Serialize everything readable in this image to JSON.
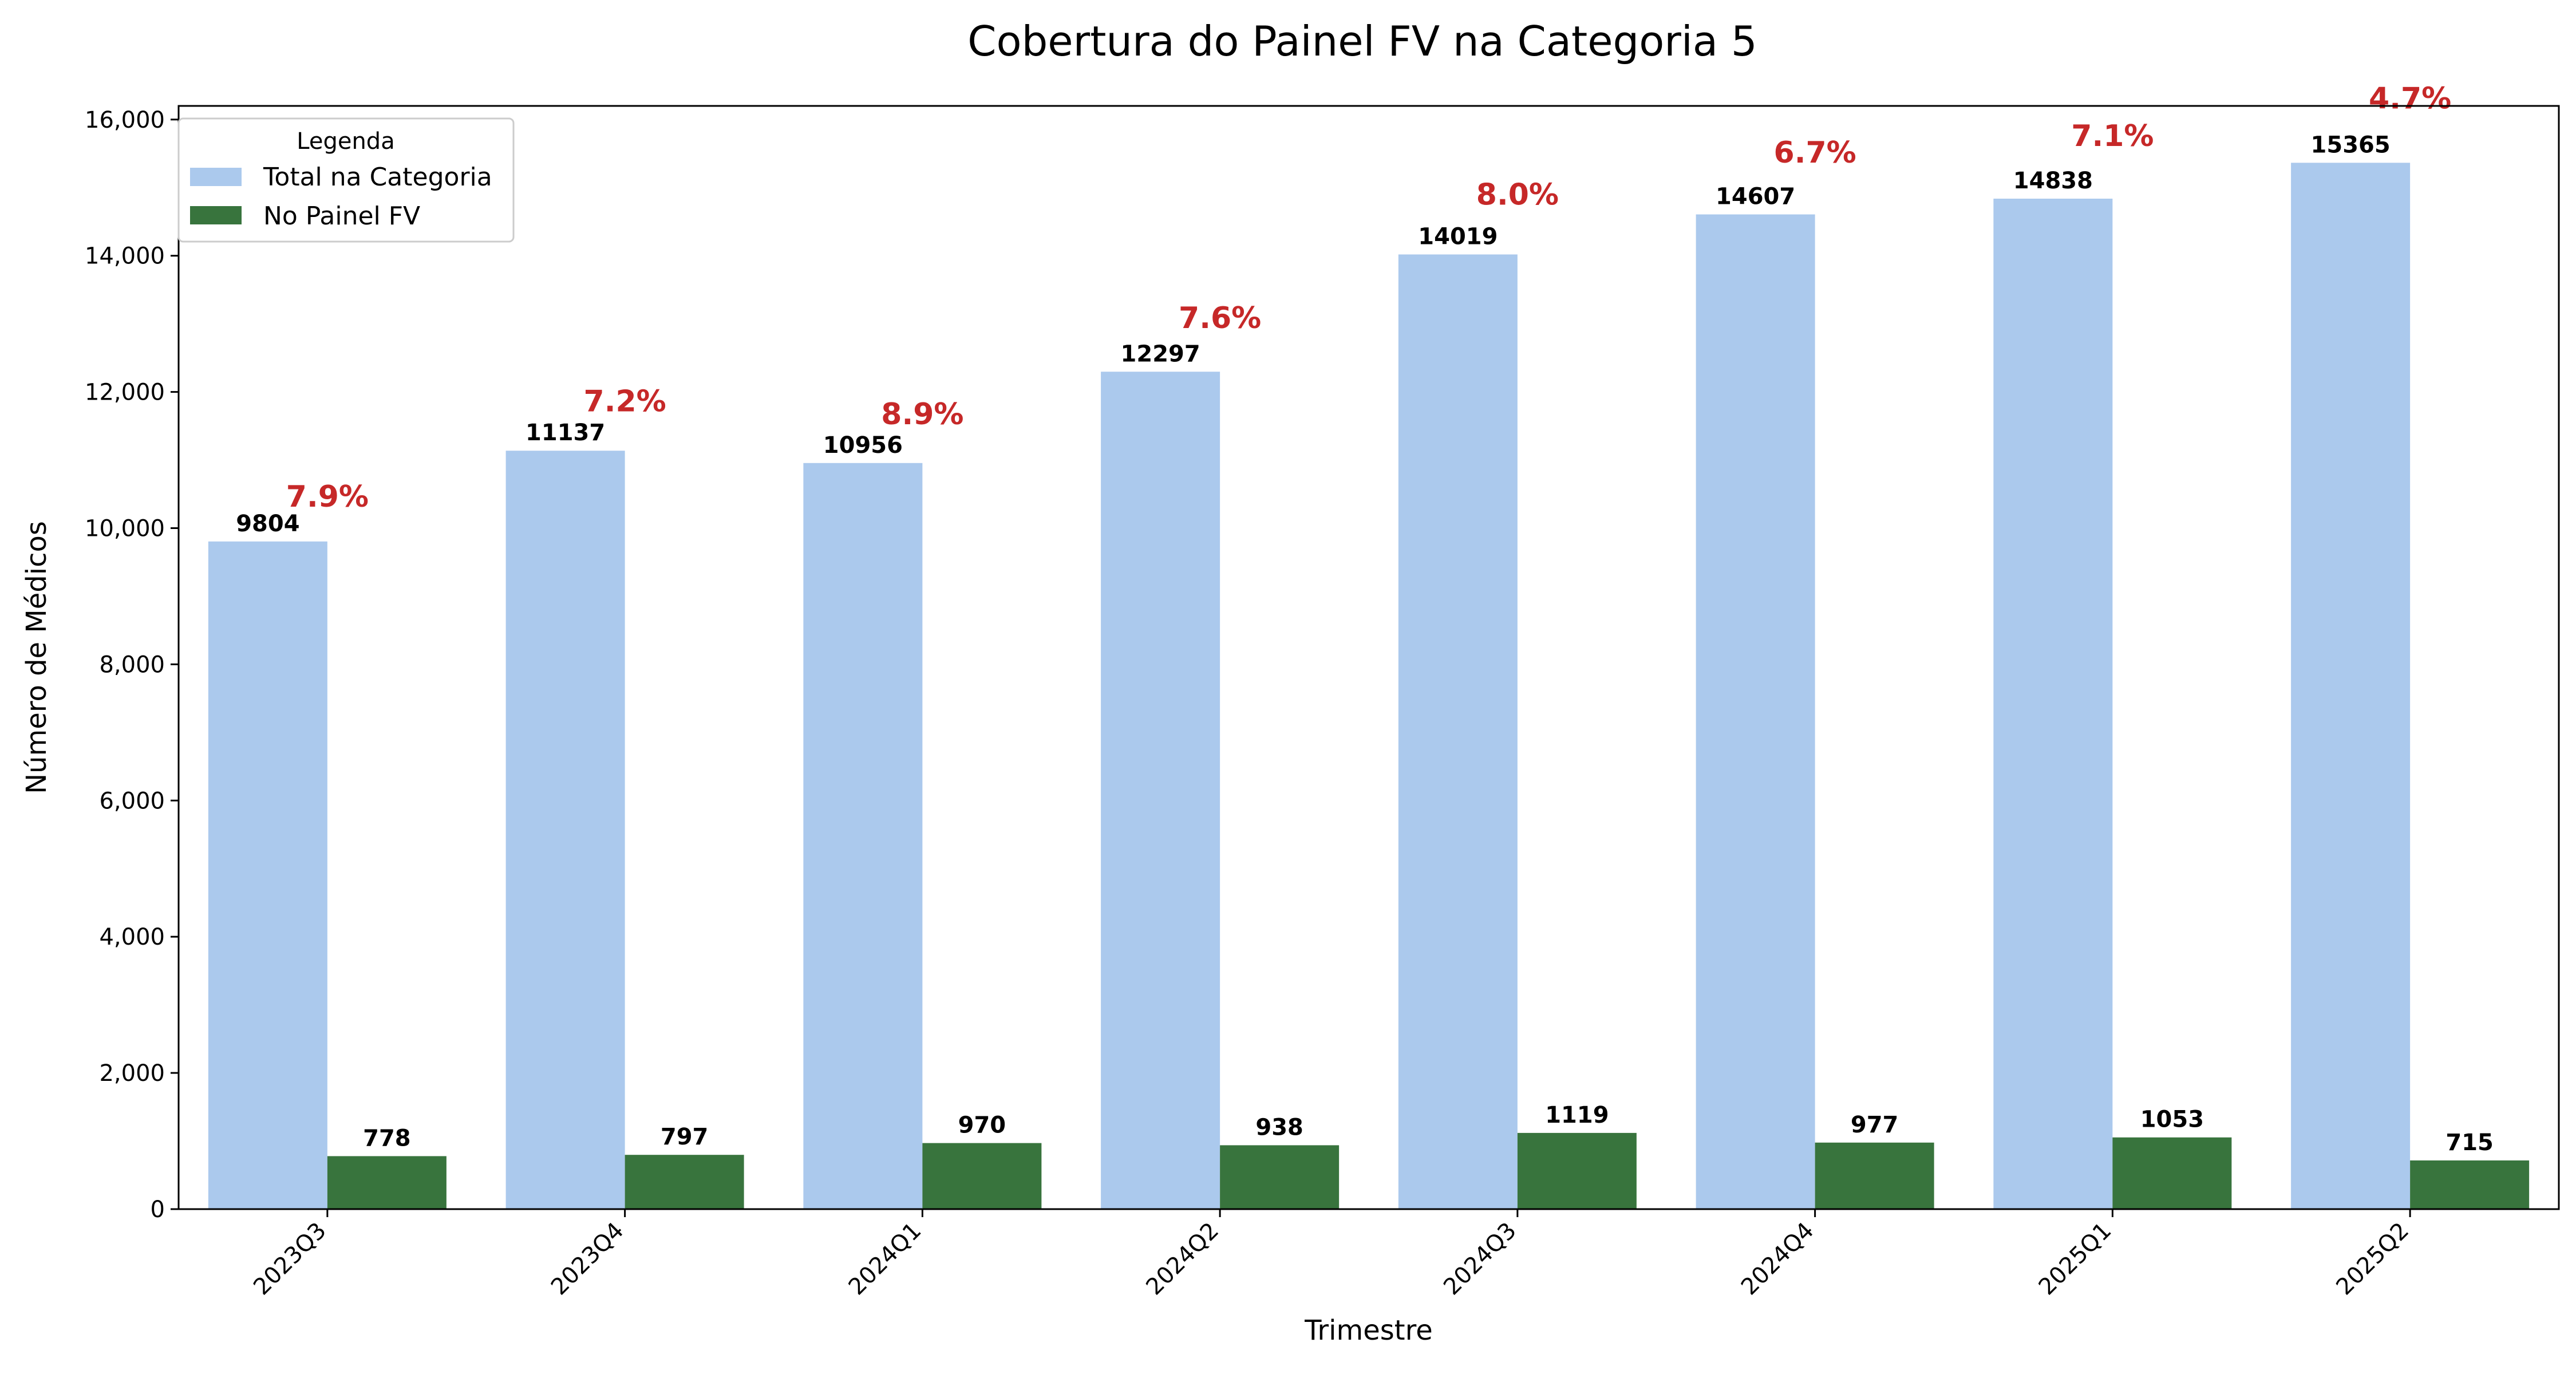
{
  "chart_data": {
    "type": "bar",
    "title": "Cobertura do Painel FV na Categoria 5",
    "xlabel": "Trimestre",
    "ylabel": "Número de Médicos",
    "categories": [
      "2023Q3",
      "2023Q4",
      "2024Q1",
      "2024Q2",
      "2024Q3",
      "2024Q4",
      "2025Q1",
      "2025Q2"
    ],
    "series": [
      {
        "name": "Total na Categoria",
        "color": "#abc9ed",
        "values": [
          9804,
          11137,
          10956,
          12297,
          14019,
          14607,
          14838,
          15365
        ]
      },
      {
        "name": "No Painel FV",
        "color": "#38743d",
        "values": [
          778,
          797,
          970,
          938,
          1119,
          977,
          1053,
          715
        ]
      }
    ],
    "percent_labels": [
      "7.9%",
      "7.2%",
      "8.9%",
      "7.6%",
      "8.0%",
      "6.7%",
      "7.1%",
      "4.7%"
    ],
    "percent_color": "#c62828",
    "ylim": [
      0,
      16200
    ],
    "yticks": [
      0,
      2000,
      4000,
      6000,
      8000,
      10000,
      12000,
      14000,
      16000
    ],
    "ytick_labels": [
      "0",
      "2,000",
      "4,000",
      "6,000",
      "8,000",
      "10,000",
      "12,000",
      "14,000",
      "16,000"
    ],
    "legend": {
      "title": "Legenda",
      "position": "top-left"
    },
    "grid": false
  }
}
